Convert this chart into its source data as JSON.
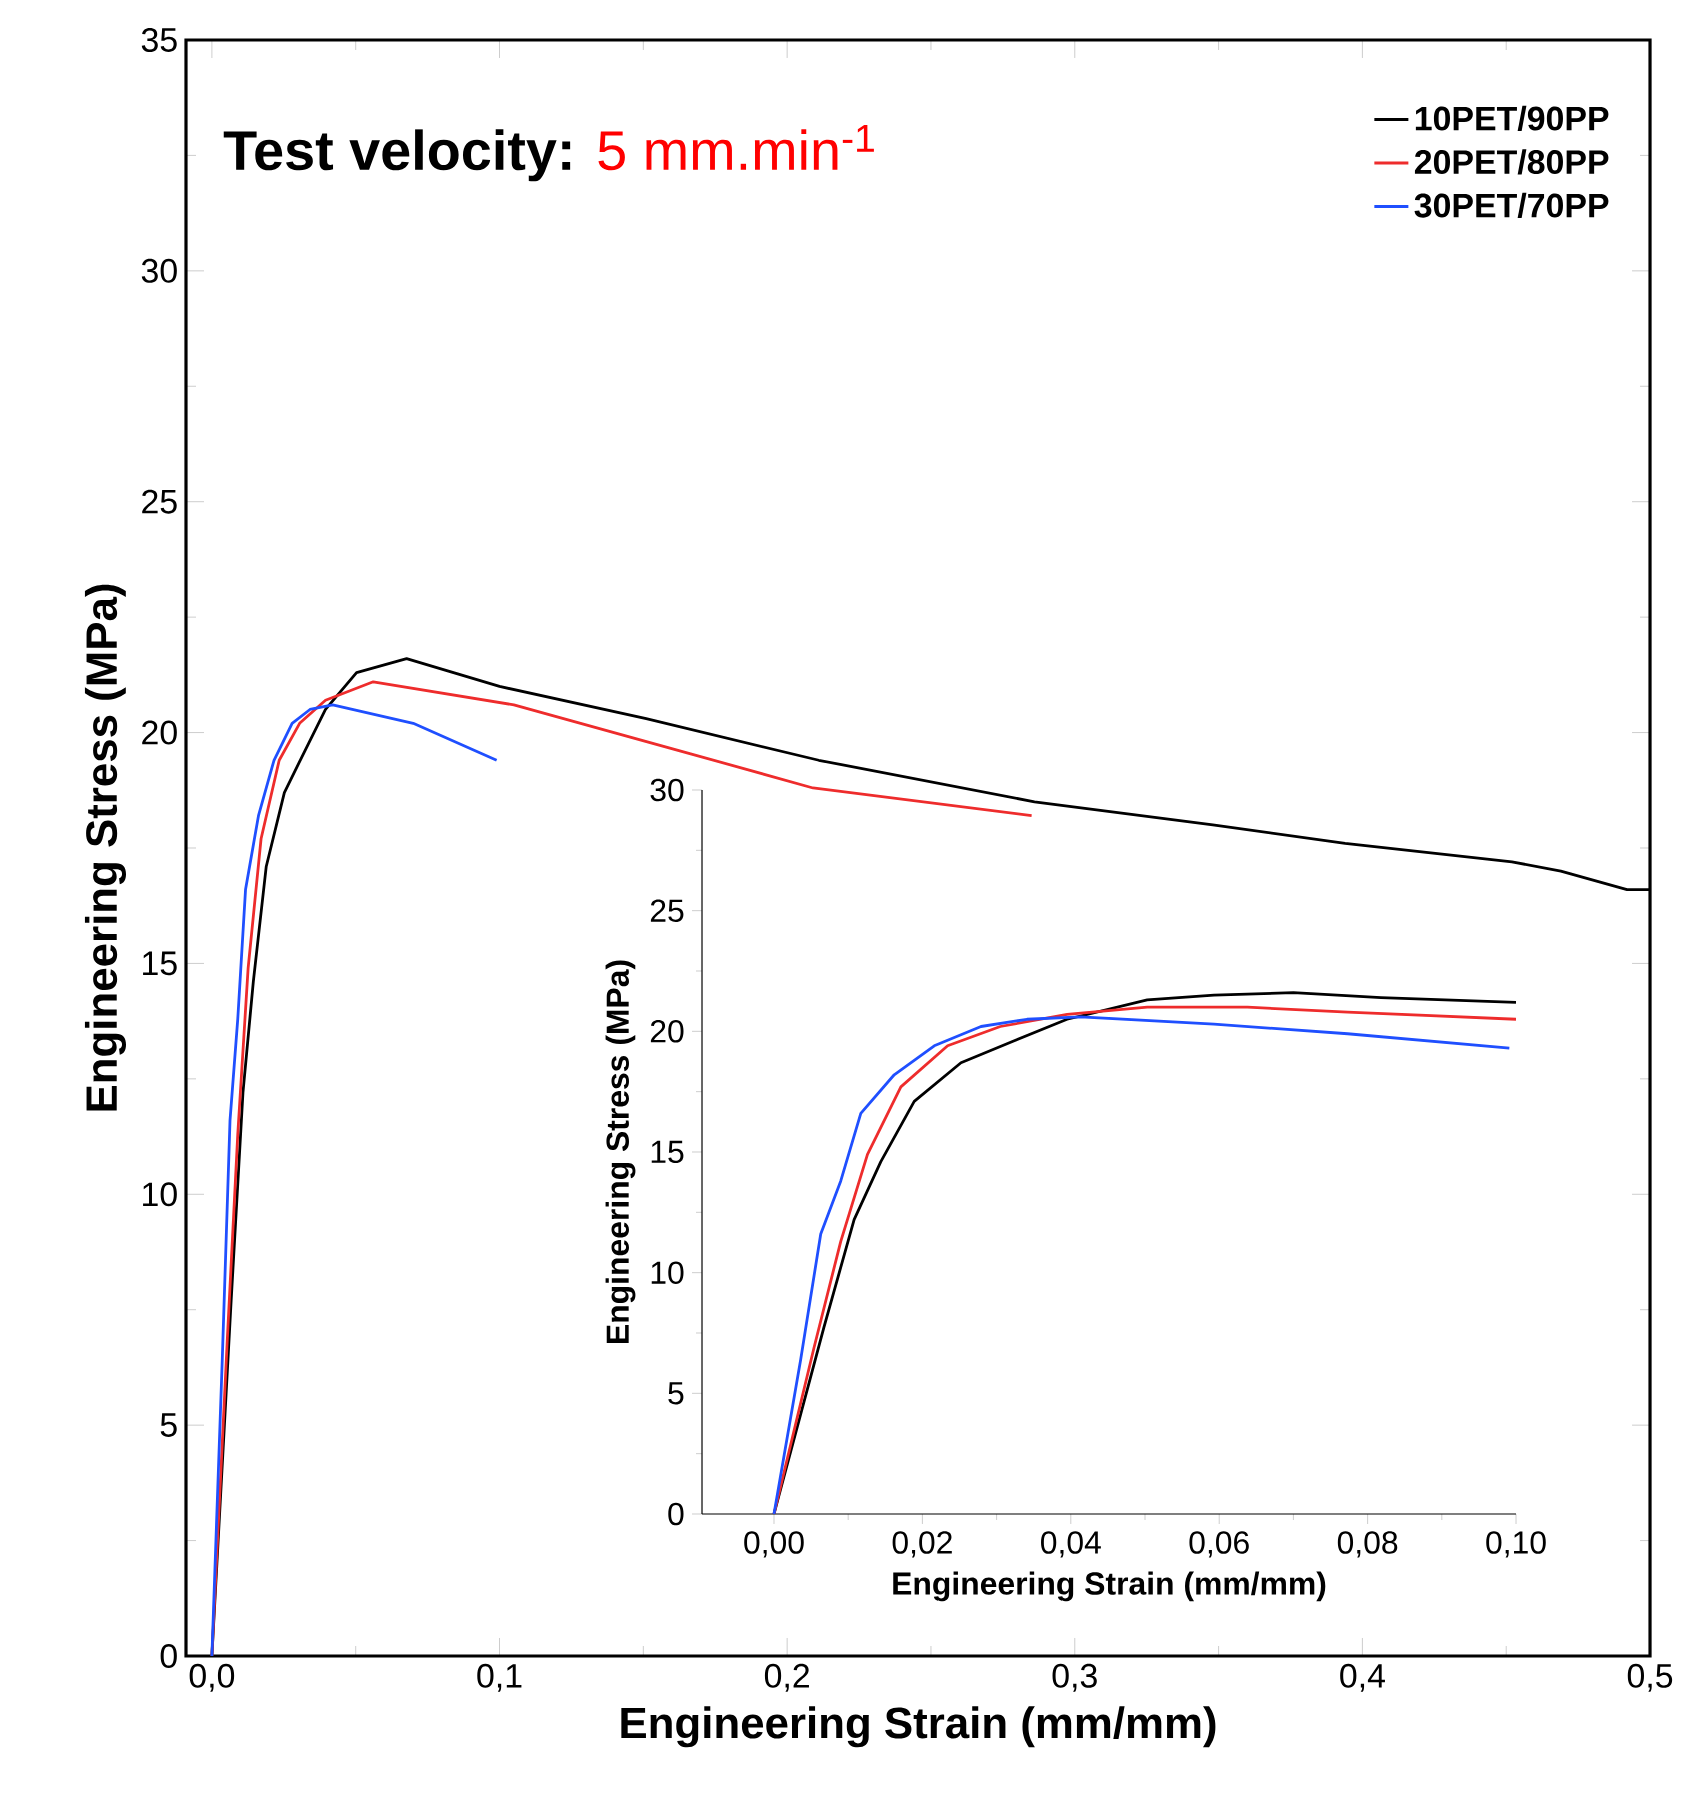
{
  "chart_data": [
    {
      "type": "line",
      "xlabel": "Engineering Strain (mm/mm)",
      "ylabel": "Engineering Stress (MPa)",
      "annotations": [
        "Test velocity:",
        "5 mm.min$^{-1}$"
      ],
      "legend": "top right",
      "xlim": [
        -0.009,
        0.5
      ],
      "xticks": [
        {
          "value": 0,
          "label": "0,0"
        },
        {
          "value": 0.1,
          "label": "0,1"
        },
        {
          "value": 0.2,
          "label": "0,2"
        },
        {
          "value": 0.3,
          "label": "0,3"
        },
        {
          "value": 0.4,
          "label": "0,4"
        },
        {
          "value": 0.5,
          "label": "0,5"
        }
      ],
      "ylim": [
        0,
        35
      ],
      "yticks": [
        0,
        5,
        10,
        15,
        20,
        25,
        30,
        35
      ],
      "series": [
        {
          "name": "10PET/90PP",
          "color": "#000000",
          "x": [
            0,
            0.0067,
            0.0108,
            0.0144,
            0.0189,
            0.0252,
            0.0323,
            0.0395,
            0.0503,
            0.0677,
            0.1,
            0.151,
            0.211,
            0.286,
            0.348,
            0.394,
            0.452,
            0.469,
            0.492,
            0.5
          ],
          "values": [
            0,
            7.7,
            12.2,
            14.6,
            17.1,
            18.7,
            19.6,
            20.5,
            21.3,
            21.6,
            21.0,
            20.3,
            19.4,
            18.5,
            18.0,
            17.6,
            17.2,
            17.0,
            16.6,
            16.6
          ]
        },
        {
          "name": "20PET/80PP",
          "color": "#ee2c2c",
          "x": [
            0,
            0.0054,
            0.009,
            0.0126,
            0.0171,
            0.0234,
            0.0305,
            0.0395,
            0.0561,
            0.105,
            0.163,
            0.209,
            0.285
          ],
          "values": [
            0,
            6.9,
            11.3,
            14.9,
            17.7,
            19.4,
            20.2,
            20.7,
            21.1,
            20.6,
            19.6,
            18.8,
            18.2
          ]
        },
        {
          "name": "30PET/70PP",
          "color": "#1f4fff",
          "x": [
            0,
            0.0036,
            0.0063,
            0.009,
            0.0117,
            0.0162,
            0.0216,
            0.0279,
            0.0341,
            0.042,
            0.07,
            0.099
          ],
          "values": [
            0,
            6.4,
            11.6,
            13.8,
            16.6,
            18.2,
            19.4,
            20.2,
            20.5,
            20.6,
            20.2,
            19.4
          ]
        }
      ]
    },
    {
      "type": "line",
      "xlabel": "Engineering Strain (mm/mm)",
      "ylabel": "Engineering Stress (MPa)",
      "xlim": [
        -0.0097,
        0.1
      ],
      "xticks": [
        {
          "value": 0,
          "label": "0,00"
        },
        {
          "value": 0.02,
          "label": "0,02"
        },
        {
          "value": 0.04,
          "label": "0,04"
        },
        {
          "value": 0.06,
          "label": "0,06"
        },
        {
          "value": 0.08,
          "label": "0,08"
        },
        {
          "value": 0.1,
          "label": "0,10"
        }
      ],
      "ylim": [
        0,
        30
      ],
      "yticks": [
        0,
        5,
        10,
        15,
        20,
        25,
        30
      ],
      "series": [
        {
          "color": "#000000",
          "x": [
            0,
            0.0067,
            0.0108,
            0.0144,
            0.0189,
            0.0252,
            0.0323,
            0.0395,
            0.0503,
            0.0593,
            0.07,
            0.0818,
            0.1
          ],
          "values": [
            0,
            7.7,
            12.2,
            14.6,
            17.1,
            18.7,
            19.6,
            20.5,
            21.3,
            21.5,
            21.6,
            21.4,
            21.2
          ]
        },
        {
          "color": "#ee2c2c",
          "x": [
            0,
            0.0054,
            0.009,
            0.0126,
            0.0171,
            0.0234,
            0.0305,
            0.0395,
            0.0503,
            0.0638,
            0.0773,
            0.1
          ],
          "values": [
            0,
            6.9,
            11.3,
            14.9,
            17.7,
            19.4,
            20.2,
            20.7,
            21.0,
            21.0,
            20.8,
            20.5
          ]
        },
        {
          "color": "#1f4fff",
          "x": [
            0,
            0.0036,
            0.0063,
            0.009,
            0.0117,
            0.0162,
            0.0216,
            0.0279,
            0.0341,
            0.0413,
            0.0593,
            0.0773,
            0.0991
          ],
          "values": [
            0,
            6.4,
            11.6,
            13.8,
            16.6,
            18.2,
            19.4,
            20.2,
            20.5,
            20.6,
            20.3,
            19.9,
            19.3
          ]
        }
      ]
    }
  ]
}
